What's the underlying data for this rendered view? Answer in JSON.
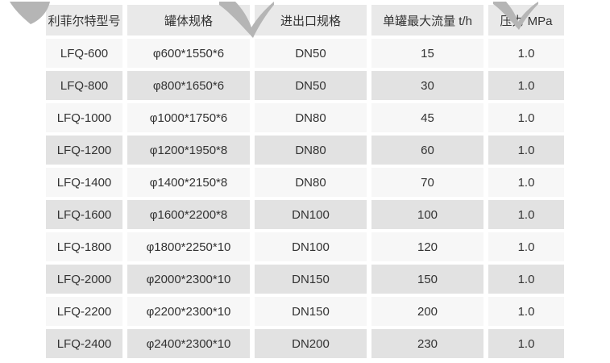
{
  "table": {
    "headers": [
      "利菲尔特型号",
      "罐体规格",
      "进出口规格",
      "单罐最大流量 t/h",
      "压力 MPa"
    ],
    "rows": [
      [
        "LFQ-600",
        "φ600*1550*6",
        "DN50",
        "15",
        "1.0"
      ],
      [
        "LFQ-800",
        "φ800*1650*6",
        "DN50",
        "30",
        "1.0"
      ],
      [
        "LFQ-1000",
        "φ1000*1750*6",
        "DN80",
        "45",
        "1.0"
      ],
      [
        "LFQ-1200",
        "φ1200*1950*8",
        "DN80",
        "60",
        "1.0"
      ],
      [
        "LFQ-1400",
        "φ1400*2150*8",
        "DN80",
        "70",
        "1.0"
      ],
      [
        "LFQ-1600",
        "φ1600*2200*8",
        "DN100",
        "100",
        "1.0"
      ],
      [
        "LFQ-1800",
        "φ1800*2250*10",
        "DN100",
        "120",
        "1.0"
      ],
      [
        "LFQ-2000",
        "φ2000*2300*10",
        "DN150",
        "150",
        "1.0"
      ],
      [
        "LFQ-2200",
        "φ2200*2300*10",
        "DN150",
        "200",
        "1.0"
      ],
      [
        "LFQ-2400",
        "φ2400*2300*10",
        "DN200",
        "230",
        "1.0"
      ]
    ]
  },
  "colors": {
    "header_bg": "#e9e9e9",
    "row_light": "#f7f7f7",
    "row_dark": "#e2e2e2",
    "text": "#333333",
    "watermark": "#b5b5b5"
  }
}
